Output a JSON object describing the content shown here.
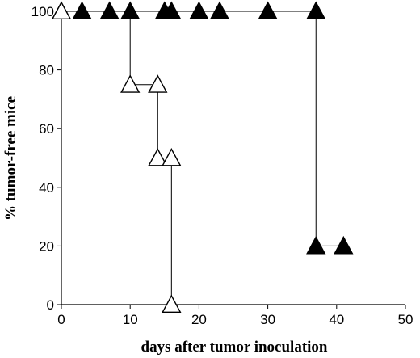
{
  "chart_data": {
    "type": "line",
    "xlabel": "days after tumor inoculation",
    "ylabel": "% tumor-free mice",
    "xlim": [
      0,
      50
    ],
    "ylim": [
      0,
      100
    ],
    "x_ticks": [
      0,
      10,
      20,
      30,
      40,
      50
    ],
    "y_ticks": [
      0,
      20,
      40,
      60,
      80,
      100
    ],
    "x_tick_labels": [
      "0",
      "10",
      "20",
      "30",
      "40",
      "50"
    ],
    "y_tick_labels": [
      "0",
      "20",
      "40",
      "60",
      "80",
      "100"
    ],
    "grid": false,
    "step": true,
    "series": [
      {
        "marker": "triangle-filled",
        "color": "#000000",
        "x": [
          0,
          3,
          7,
          10,
          15,
          16,
          20,
          23,
          30,
          37,
          37,
          41
        ],
        "y": [
          100,
          100,
          100,
          100,
          100,
          100,
          100,
          100,
          100,
          100,
          20,
          20
        ]
      },
      {
        "marker": "triangle-open",
        "color": "#000000",
        "x": [
          0,
          10,
          14,
          14,
          16,
          16
        ],
        "y": [
          100,
          75,
          75,
          50,
          50,
          0
        ]
      }
    ]
  }
}
